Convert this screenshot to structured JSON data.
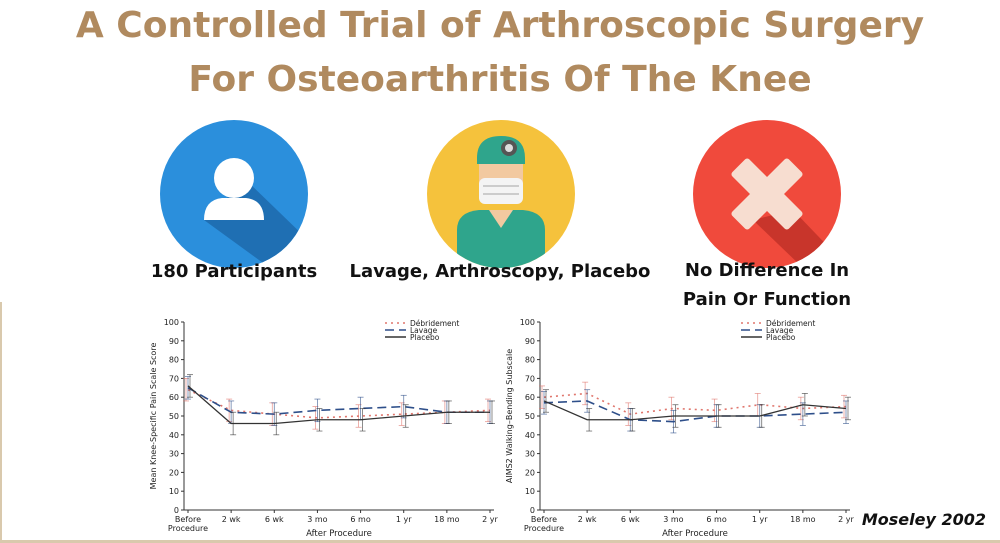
{
  "title": {
    "line1": "A Controlled Trial of Arthroscopic Surgery",
    "line2": "For Osteoarthritis Of The Knee"
  },
  "icons": [
    {
      "name": "user-icon",
      "caption": "180 Participants",
      "color": "#2b8fdc"
    },
    {
      "name": "surgeon-icon",
      "caption": "Lavage, Arthroscopy, Placebo",
      "color": "#f5c23c"
    },
    {
      "name": "cross-icon",
      "caption_lines": [
        "No Difference In",
        "Pain Or Function"
      ],
      "color": "#f04a3c"
    }
  ],
  "credit": "Moseley 2002",
  "colors": {
    "debridement": "#e0766d",
    "lavage": "#2e4f8a",
    "placebo": "#333333",
    "title": "#b08a5f"
  },
  "chart_data": [
    {
      "type": "line",
      "ylabel": "Mean Knee-Specific Pain Scale Score",
      "xlabel": "After Procedure",
      "ylim": [
        0,
        100
      ],
      "yticks": [
        0,
        10,
        20,
        30,
        40,
        50,
        60,
        70,
        80,
        90,
        100
      ],
      "categories": [
        "Before Procedure",
        "2 wk",
        "6 wk",
        "3 mo",
        "6 mo",
        "1 yr",
        "18 mo",
        "2 yr"
      ],
      "legend_placement": "top-right",
      "series": [
        {
          "name": "Débridement",
          "style": "dotted",
          "values": [
            64,
            53,
            51,
            49,
            50,
            51,
            52,
            53
          ]
        },
        {
          "name": "Lavage",
          "style": "dashed",
          "values": [
            65,
            52,
            51,
            53,
            54,
            55,
            52,
            52
          ]
        },
        {
          "name": "Placebo",
          "style": "solid",
          "values": [
            66,
            46,
            46,
            48,
            48,
            50,
            52,
            52
          ]
        }
      ]
    },
    {
      "type": "line",
      "ylabel": "AIMS2 Walking–Bending Subscale",
      "xlabel": "After Procedure",
      "ylim": [
        0,
        100
      ],
      "yticks": [
        0,
        10,
        20,
        30,
        40,
        50,
        60,
        70,
        80,
        90,
        100
      ],
      "categories": [
        "Before Procedure",
        "2 wk",
        "6 wk",
        "3 mo",
        "6 mo",
        "1 yr",
        "18 mo",
        "2 yr"
      ],
      "legend_placement": "top-right",
      "series": [
        {
          "name": "Débridement",
          "style": "dotted",
          "values": [
            60,
            62,
            51,
            54,
            53,
            56,
            54,
            55
          ]
        },
        {
          "name": "Lavage",
          "style": "dashed",
          "values": [
            57,
            58,
            48,
            47,
            50,
            50,
            51,
            52
          ]
        },
        {
          "name": "Placebo",
          "style": "solid",
          "values": [
            58,
            48,
            48,
            50,
            50,
            50,
            56,
            54
          ]
        }
      ]
    }
  ]
}
